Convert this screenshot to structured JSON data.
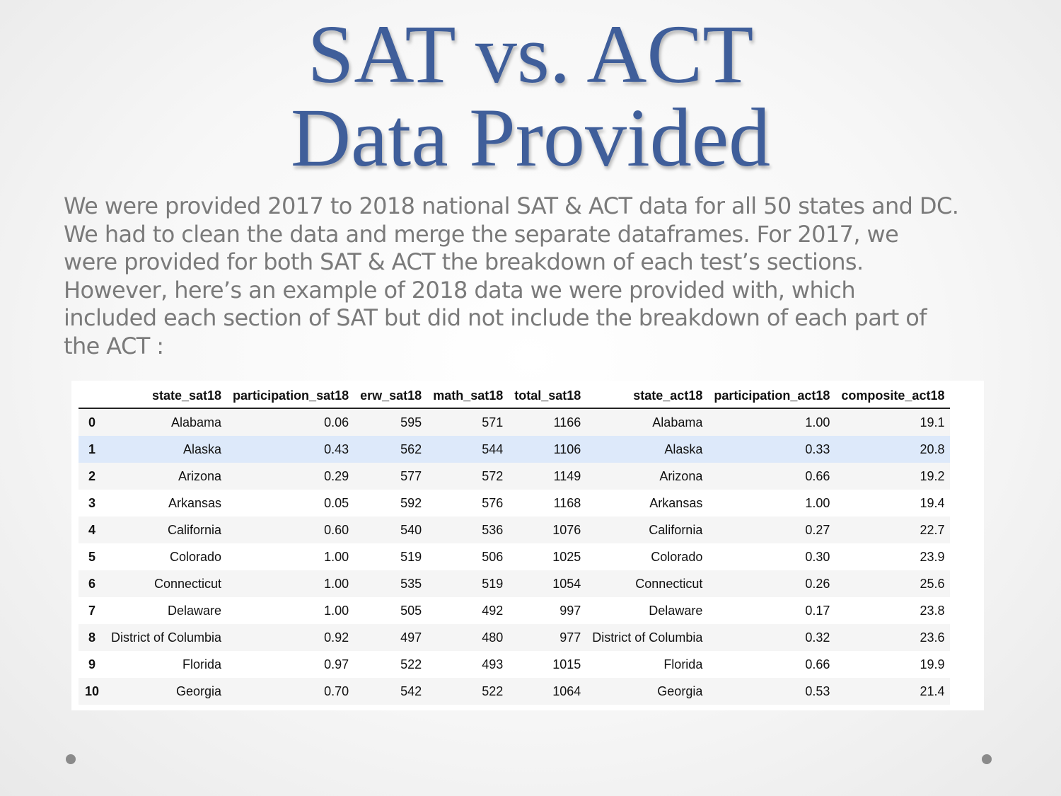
{
  "title": {
    "line1": "SAT vs. ACT",
    "line2": "Data Provided"
  },
  "body_lines": [
    "We were provided 2017 to 2018 national SAT & ACT data for all 50 states and DC.",
    "We had to clean the data and merge the separate dataframes. For 2017, we",
    "were provided for both SAT & ACT the breakdown of each test’s sections.",
    "However, here’s an example of 2018 data we were provided with, which",
    "included each section of SAT but did not include the breakdown of each part of",
    "the ACT :"
  ],
  "table": {
    "headers": [
      "",
      "state_sat18",
      "participation_sat18",
      "erw_sat18",
      "math_sat18",
      "total_sat18",
      "state_act18",
      "participation_act18",
      "composite_act18"
    ],
    "rows": [
      [
        "0",
        "Alabama",
        "0.06",
        "595",
        "571",
        "1166",
        "Alabama",
        "1.00",
        "19.1"
      ],
      [
        "1",
        "Alaska",
        "0.43",
        "562",
        "544",
        "1106",
        "Alaska",
        "0.33",
        "20.8"
      ],
      [
        "2",
        "Arizona",
        "0.29",
        "577",
        "572",
        "1149",
        "Arizona",
        "0.66",
        "19.2"
      ],
      [
        "3",
        "Arkansas",
        "0.05",
        "592",
        "576",
        "1168",
        "Arkansas",
        "1.00",
        "19.4"
      ],
      [
        "4",
        "California",
        "0.60",
        "540",
        "536",
        "1076",
        "California",
        "0.27",
        "22.7"
      ],
      [
        "5",
        "Colorado",
        "1.00",
        "519",
        "506",
        "1025",
        "Colorado",
        "0.30",
        "23.9"
      ],
      [
        "6",
        "Connecticut",
        "1.00",
        "535",
        "519",
        "1054",
        "Connecticut",
        "0.26",
        "25.6"
      ],
      [
        "7",
        "Delaware",
        "1.00",
        "505",
        "492",
        "997",
        "Delaware",
        "0.17",
        "23.8"
      ],
      [
        "8",
        "District of Columbia",
        "0.92",
        "497",
        "480",
        "977",
        "District of Columbia",
        "0.32",
        "23.6"
      ],
      [
        "9",
        "Florida",
        "0.97",
        "522",
        "493",
        "1015",
        "Florida",
        "0.66",
        "19.9"
      ],
      [
        "10",
        "Georgia",
        "0.70",
        "542",
        "522",
        "1064",
        "Georgia",
        "0.53",
        "21.4"
      ]
    ],
    "highlighted_row": 1
  },
  "colors": {
    "title": "#3f5e9a",
    "body_text": "#7a7a7a",
    "highlight_row": "#dde9fa",
    "alt_row": "#f5f5f5"
  }
}
